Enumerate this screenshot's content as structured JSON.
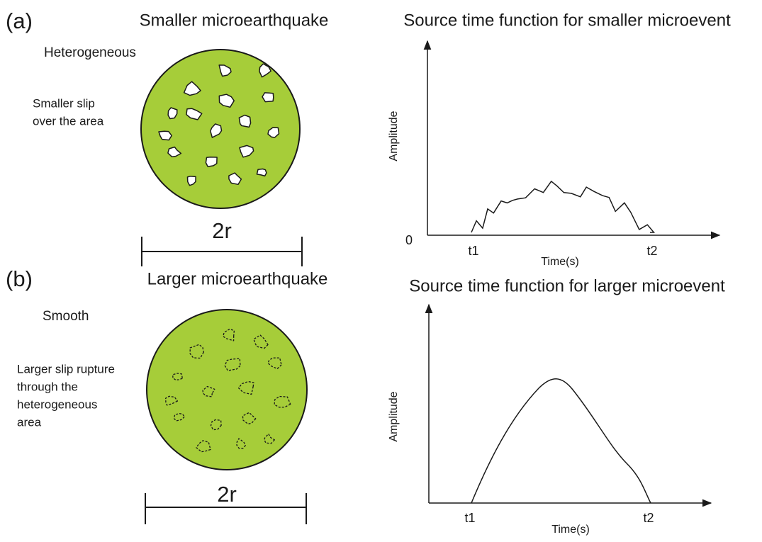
{
  "panels": [
    {
      "label": "(a)",
      "title": "Smaller microearthquake",
      "surface": "Heterogeneous",
      "note": [
        "Smaller slip",
        "over the area"
      ],
      "scale": "2r",
      "stf_title": "Source time function for smaller microevent",
      "y_label": "Amplitude",
      "x_label": "Time(s)",
      "origin": "0",
      "t_start": "t1",
      "t_end": "t2"
    },
    {
      "label": "(b)",
      "title": "Larger microearthquake",
      "surface": "Smooth",
      "note": [
        "Larger slip rupture",
        "through the",
        "heterogeneous",
        "area"
      ],
      "scale": "2r",
      "stf_title": "Source time function for larger microevent",
      "y_label": "Amplitude",
      "x_label": "Time(s)",
      "t_start": "t1",
      "t_end": "t2"
    }
  ]
}
